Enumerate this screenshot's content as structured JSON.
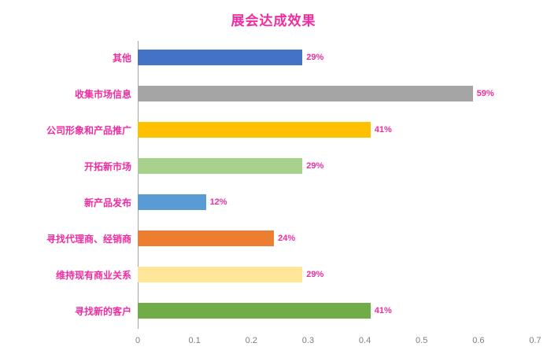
{
  "chart_data": {
    "type": "bar",
    "orientation": "horizontal",
    "title": "展会达成效果",
    "title_color": "#f02da0",
    "label_color": "#f02da0",
    "axis_tick_color": "#7f7f7f",
    "axis_line_color": "#a6a6a6",
    "categories": [
      "其他",
      "收集市场信息",
      "公司形象和产品推广",
      "开拓新市场",
      "新产品发布",
      "寻找代理商、经销商",
      "维持现有商业关系",
      "寻找新的客户"
    ],
    "values": [
      0.29,
      0.59,
      0.41,
      0.29,
      0.12,
      0.24,
      0.29,
      0.41
    ],
    "data_labels": [
      "29%",
      "59%",
      "41%",
      "29%",
      "12%",
      "24%",
      "29%",
      "41%"
    ],
    "bar_colors": [
      "#4472C4",
      "#A5A5A5",
      "#FFC000",
      "#A9D18E",
      "#5B9BD5",
      "#ED7D31",
      "#FFE699",
      "#70AD47"
    ],
    "xlim": [
      0,
      0.7
    ],
    "x_ticks": [
      "0",
      "0.1",
      "0.2",
      "0.3",
      "0.4",
      "0.5",
      "0.6",
      "0.7"
    ],
    "grid": false,
    "legend": false
  }
}
